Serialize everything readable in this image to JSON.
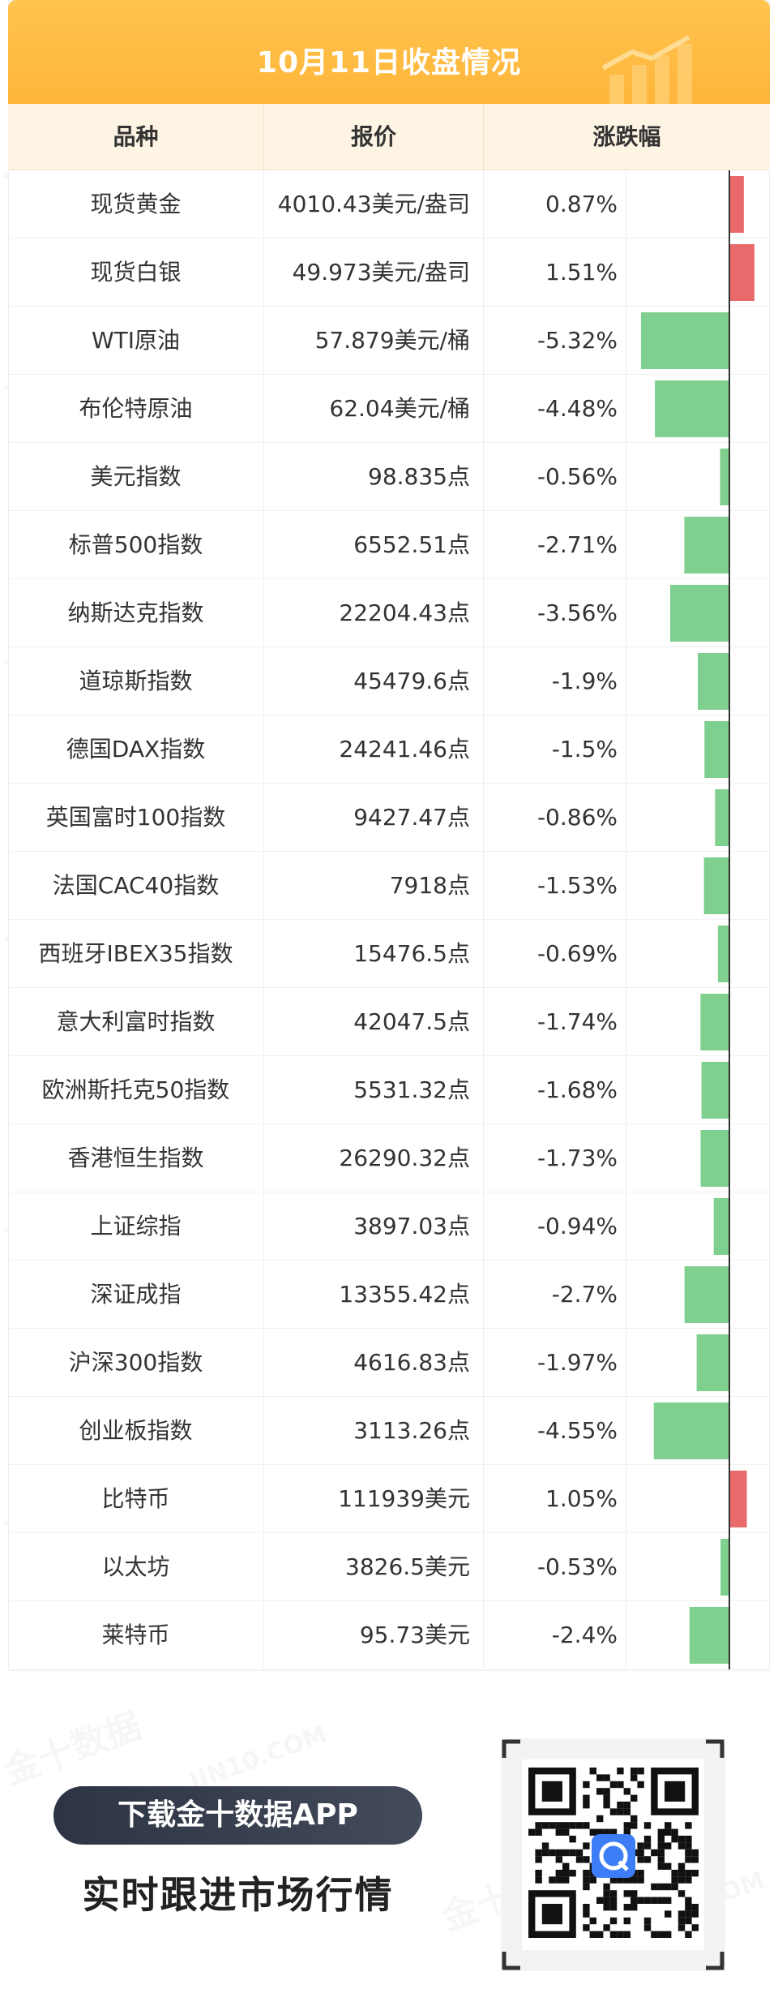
{
  "title": "10月11日收盘情况",
  "headers": {
    "name": "品种",
    "price": "报价",
    "change": "涨跌幅"
  },
  "colors": {
    "up": "#e96a6a",
    "down": "#7fcf8f",
    "title": "#ffb53a",
    "header_bg": "#fdf4e3"
  },
  "rows": [
    {
      "name": "现货黄金",
      "price": "4010.43美元/盎司",
      "change_label": "0.87%"
    },
    {
      "name": "现货白银",
      "price": "49.973美元/盎司",
      "change_label": "1.51%"
    },
    {
      "name": "WTI原油",
      "price": "57.879美元/桶",
      "change_label": "-5.32%"
    },
    {
      "name": "布伦特原油",
      "price": "62.04美元/桶",
      "change_label": "-4.48%"
    },
    {
      "name": "美元指数",
      "price": "98.835点",
      "change_label": "-0.56%"
    },
    {
      "name": "标普500指数",
      "price": "6552.51点",
      "change_label": "-2.71%"
    },
    {
      "name": "纳斯达克指数",
      "price": "22204.43点",
      "change_label": "-3.56%"
    },
    {
      "name": "道琼斯指数",
      "price": "45479.6点",
      "change_label": "-1.9%"
    },
    {
      "name": "德国DAX指数",
      "price": "24241.46点",
      "change_label": "-1.5%"
    },
    {
      "name": "英国富时100指数",
      "price": "9427.47点",
      "change_label": "-0.86%"
    },
    {
      "name": "法国CAC40指数",
      "price": "7918点",
      "change_label": "-1.53%"
    },
    {
      "name": "西班牙IBEX35指数",
      "price": "15476.5点",
      "change_label": "-0.69%"
    },
    {
      "name": "意大利富时指数",
      "price": "42047.5点",
      "change_label": "-1.74%"
    },
    {
      "name": "欧洲斯托克50指数",
      "price": "5531.32点",
      "change_label": "-1.68%"
    },
    {
      "name": "香港恒生指数",
      "price": "26290.32点",
      "change_label": "-1.73%"
    },
    {
      "name": "上证综指",
      "price": "3897.03点",
      "change_label": "-0.94%"
    },
    {
      "name": "深证成指",
      "price": "13355.42点",
      "change_label": "-2.7%"
    },
    {
      "name": "沪深300指数",
      "price": "4616.83点",
      "change_label": "-1.97%"
    },
    {
      "name": "创业板指数",
      "price": "3113.26点",
      "change_label": "-4.55%"
    },
    {
      "name": "比特币",
      "price": "111939美元",
      "change_label": "1.05%"
    },
    {
      "name": "以太坊",
      "price": "3826.5美元",
      "change_label": "-0.53%"
    },
    {
      "name": "莱特币",
      "price": "95.73美元",
      "change_label": "-2.4%"
    }
  ],
  "chart_data": {
    "type": "bar",
    "orientation": "horizontal",
    "categories": [
      "现货黄金",
      "现货白银",
      "WTI原油",
      "布伦特原油",
      "美元指数",
      "标普500指数",
      "纳斯达克指数",
      "道琼斯指数",
      "德国DAX指数",
      "英国富时100指数",
      "法国CAC40指数",
      "西班牙IBEX35指数",
      "意大利富时指数",
      "欧洲斯托克50指数",
      "香港恒生指数",
      "上证综指",
      "深证成指",
      "沪深300指数",
      "创业板指数",
      "比特币",
      "以太坊",
      "莱特币"
    ],
    "values": [
      0.87,
      1.51,
      -5.32,
      -4.48,
      -0.56,
      -2.71,
      -3.56,
      -1.9,
      -1.5,
      -0.86,
      -1.53,
      -0.69,
      -1.74,
      -1.68,
      -1.73,
      -0.94,
      -2.7,
      -1.97,
      -4.55,
      1.05,
      -0.53,
      -2.4
    ],
    "unit": "%",
    "zero_line": true
  },
  "footer": {
    "button_label": "下载金十数据APP",
    "slogan": "实时跟进市场行情",
    "qr_icon": "qr-code-icon"
  },
  "watermark": {
    "brand": "金十数据",
    "domain": "JIN10.COM"
  }
}
